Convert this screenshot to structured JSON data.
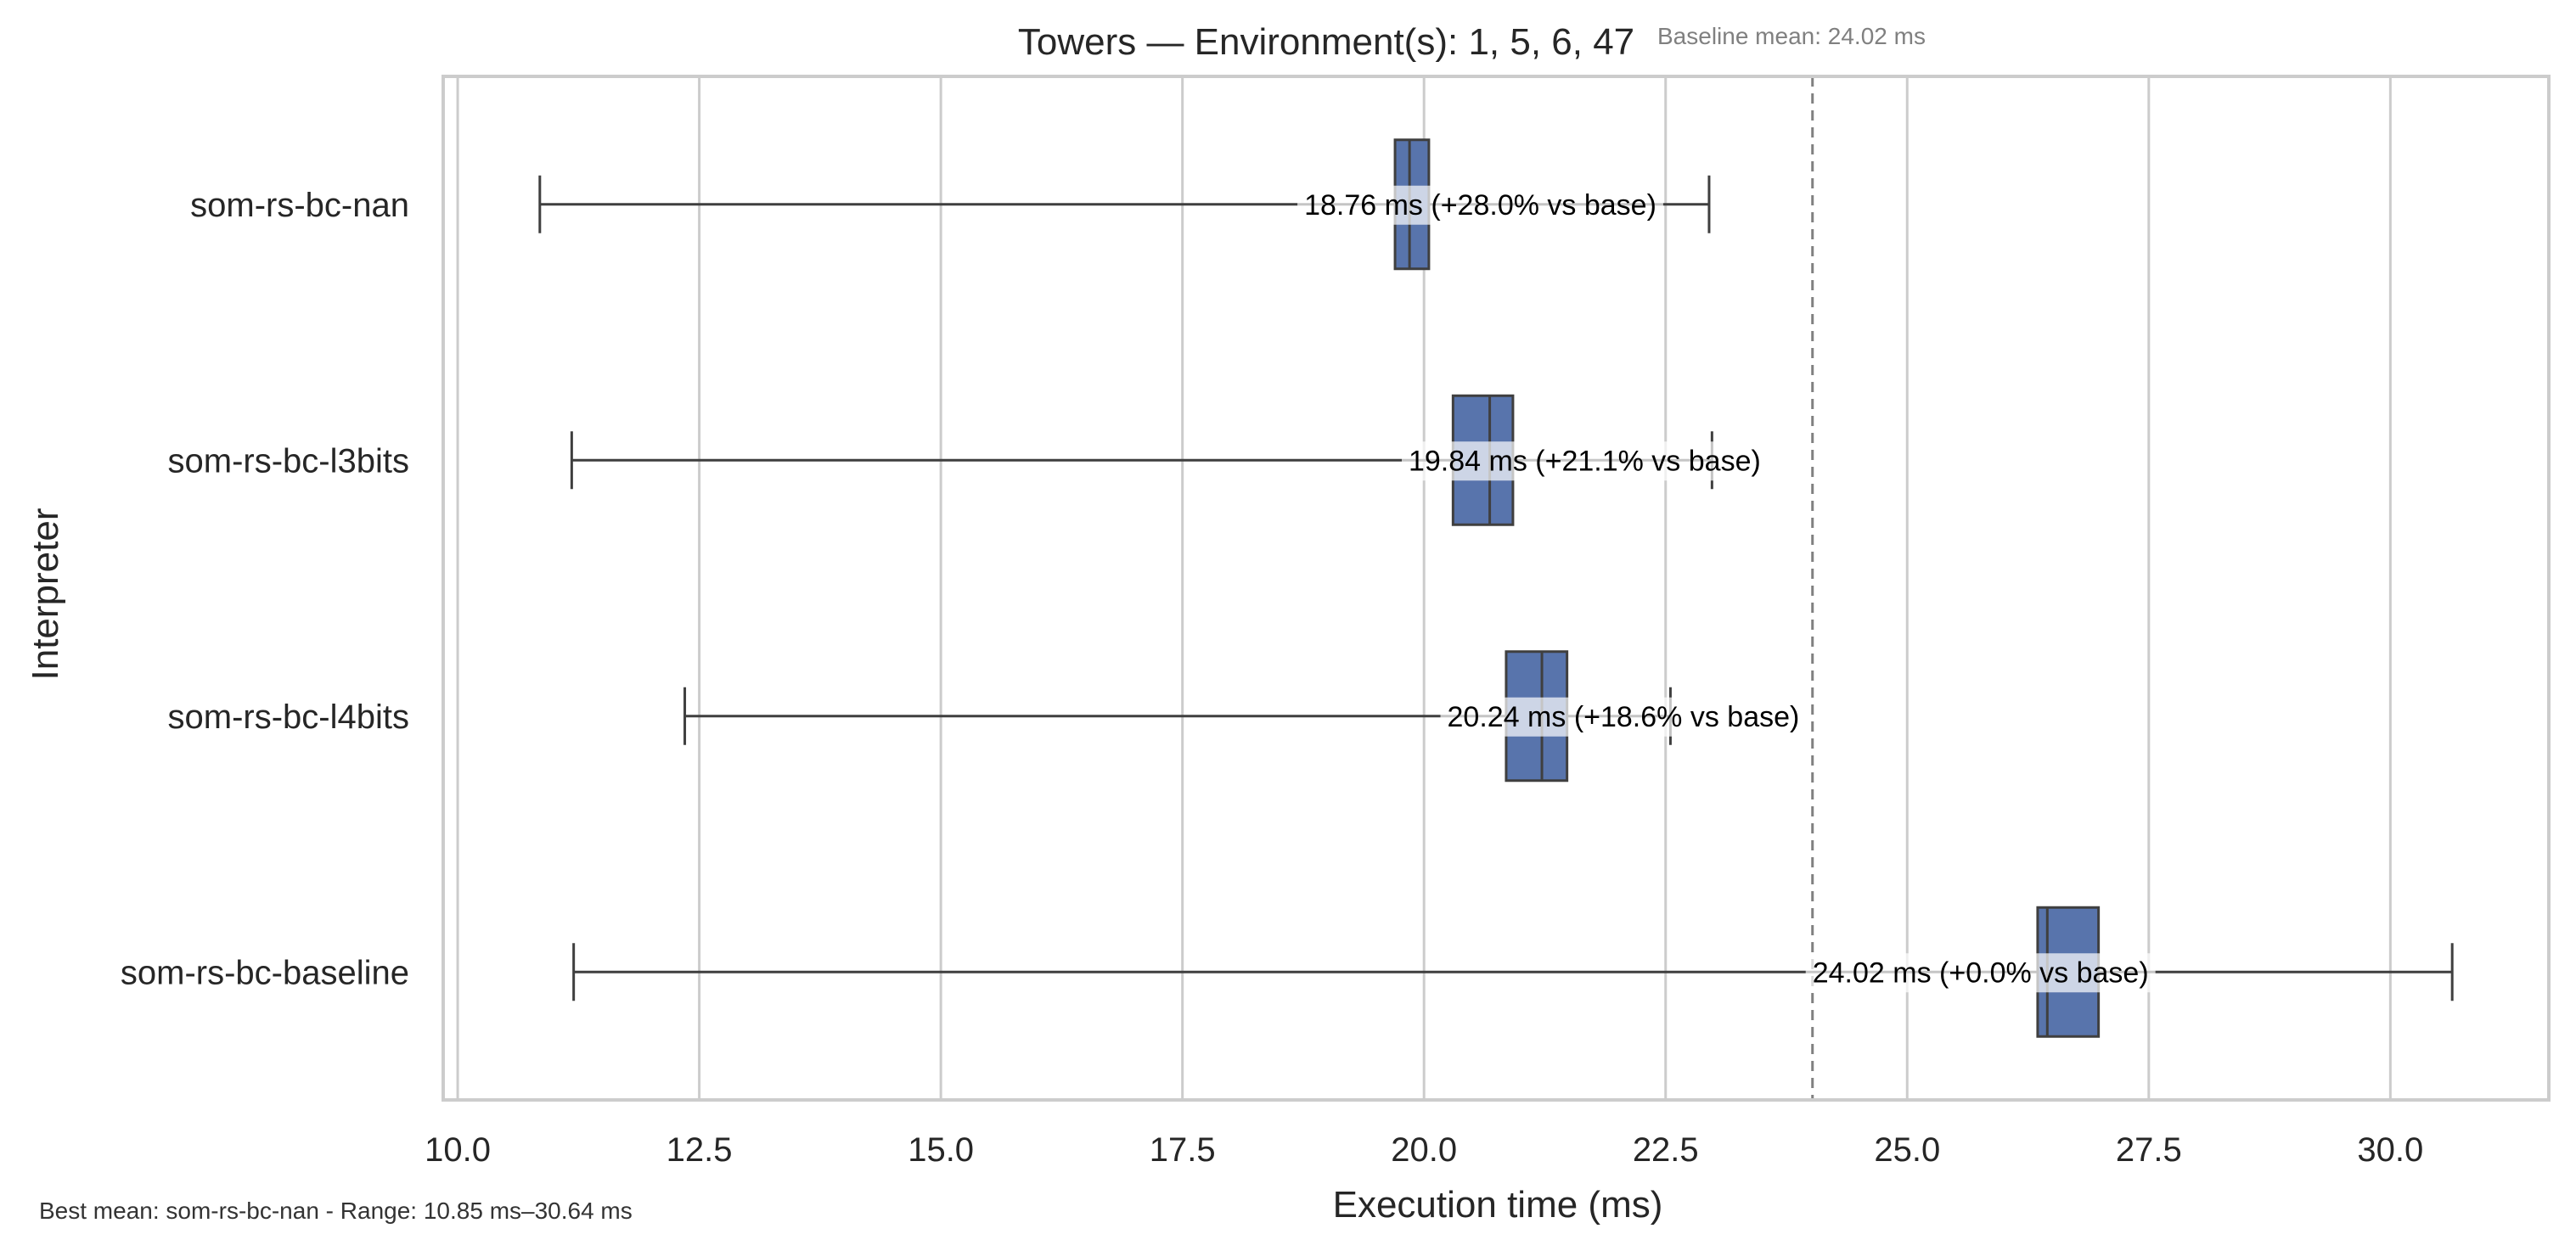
{
  "chart_data": {
    "type": "box",
    "orientation": "horizontal",
    "title": "Towers — Environment(s): 1, 5, 6, 47",
    "xlabel": "Execution time (ms)",
    "ylabel": "Interpreter",
    "xlim": [
      9.85,
      31.64
    ],
    "x_ticks": [
      "10.0",
      "12.5",
      "15.0",
      "17.5",
      "20.0",
      "22.5",
      "25.0",
      "27.5",
      "30.0"
    ],
    "grid": "vertical",
    "colors": {
      "box": "#5874ac",
      "line": "#3f3f3f",
      "grid": "#cccccc",
      "baseline": "#808080"
    },
    "categories": [
      "som-rs-bc-nan",
      "som-rs-bc-l3bits",
      "som-rs-bc-l4bits",
      "som-rs-bc-baseline"
    ],
    "series": [
      {
        "category": "som-rs-bc-nan",
        "whisker_low": 10.85,
        "q1": 19.7,
        "median": 19.85,
        "q3": 20.05,
        "whisker_high": 22.95,
        "mean": 18.76,
        "label": "18.76 ms  (+28.0% vs base)"
      },
      {
        "category": "som-rs-bc-l3bits",
        "whisker_low": 11.18,
        "q1": 20.3,
        "median": 20.68,
        "q3": 20.92,
        "whisker_high": 22.98,
        "mean": 19.84,
        "label": "19.84 ms  (+21.1% vs base)"
      },
      {
        "category": "som-rs-bc-l4bits",
        "whisker_low": 12.35,
        "q1": 20.85,
        "median": 21.22,
        "q3": 21.48,
        "whisker_high": 22.55,
        "mean": 20.24,
        "label": "20.24 ms  (+18.6% vs base)"
      },
      {
        "category": "som-rs-bc-baseline",
        "whisker_low": 11.2,
        "q1": 26.35,
        "median": 26.45,
        "q3": 26.98,
        "whisker_high": 30.64,
        "mean": 24.02,
        "label": "24.02 ms  (+0.0% vs base)"
      }
    ],
    "baseline": {
      "value": 24.02,
      "label": "Baseline mean: 24.02 ms"
    },
    "footnote": "Best mean: som-rs-bc-nan - Range: 10.85 ms–30.64 ms"
  }
}
